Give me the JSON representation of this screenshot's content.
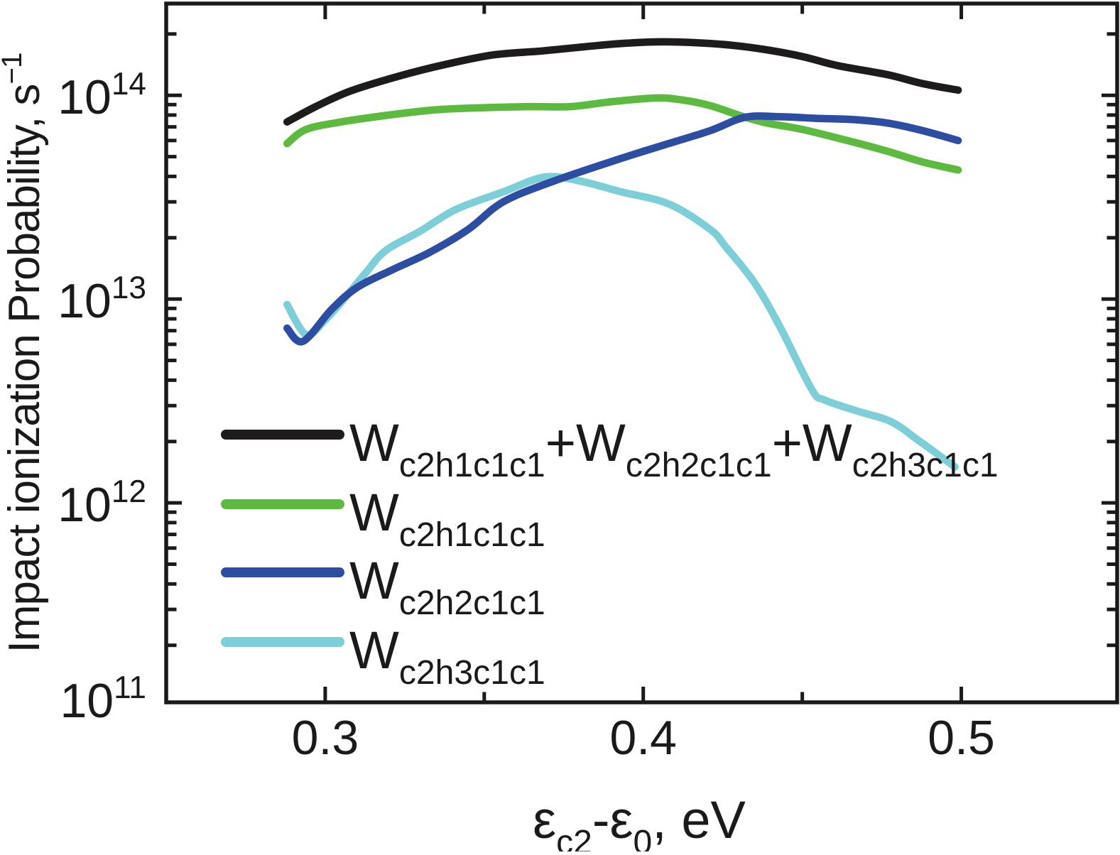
{
  "figure": {
    "background": "#ffffff",
    "kind": "log-scale line plot, publication style"
  },
  "colors": {
    "axis": "#1a1a1a",
    "text": "#1a1a1a",
    "sum": "#1d1b1b",
    "green": "#5cbb3e",
    "blue": "#2d4da2",
    "cyan": "#7ccfd7"
  },
  "axes": {
    "x": {
      "scale": "linear",
      "range": [
        0.25,
        0.549
      ],
      "title_runs": [
        [
          "ε",
          "n"
        ],
        [
          "c2",
          "sub"
        ],
        [
          "-ε",
          "n"
        ],
        [
          "0",
          "sub"
        ],
        [
          ", eV",
          "n"
        ]
      ],
      "major_ticks": [
        {
          "value": 0.3,
          "label": "0.3"
        },
        {
          "value": 0.4,
          "label": "0.4"
        },
        {
          "value": 0.5,
          "label": "0.5"
        }
      ],
      "minor_ticks": [
        0.35,
        0.45
      ]
    },
    "y": {
      "scale": "log",
      "range": [
        105000000000.0,
        282000000000000.0
      ],
      "title_runs": [
        [
          "Impact ionization Probability, s",
          "n"
        ],
        [
          "−1",
          "sup"
        ]
      ],
      "tick_labels": [
        {
          "value": 100000000000.0,
          "base": "10",
          "exp": "11"
        },
        {
          "value": 1000000000000.0,
          "base": "10",
          "exp": "12"
        },
        {
          "value": 10000000000000.0,
          "base": "10",
          "exp": "13"
        },
        {
          "value": 100000000000000.0,
          "base": "10",
          "exp": "14"
        }
      ],
      "major_ticks": [
        1000000000000.0,
        10000000000000.0,
        100000000000000.0
      ],
      "minor_decades": [
        100000000000.0,
        1000000000000.0,
        10000000000000.0,
        100000000000000.0
      ]
    }
  },
  "legend": {
    "position": "inside lower-left",
    "entries": [
      {
        "series_index": 0,
        "color_key": "sum",
        "runs": [
          [
            "W",
            "n"
          ],
          [
            "c2h1c1c1",
            "sub"
          ],
          [
            "+W",
            "n"
          ],
          [
            "c2h2c1c1",
            "sub"
          ],
          [
            "+W",
            "n"
          ],
          [
            "c2h3c1c1",
            "sub"
          ]
        ]
      },
      {
        "series_index": 1,
        "color_key": "green",
        "runs": [
          [
            "W",
            "n"
          ],
          [
            "c2h1c1c1",
            "sub"
          ]
        ]
      },
      {
        "series_index": 2,
        "color_key": "blue",
        "runs": [
          [
            "W",
            "n"
          ],
          [
            "c2h2c1c1",
            "sub"
          ]
        ]
      },
      {
        "series_index": 3,
        "color_key": "cyan",
        "runs": [
          [
            "W",
            "n"
          ],
          [
            "c2h3c1c1",
            "sub"
          ]
        ]
      }
    ]
  },
  "chart_data": {
    "type": "line",
    "title": "",
    "xlabel": "εc2-ε0, eV",
    "ylabel": "Impact ionization Probability, s^-1",
    "xscale": "linear",
    "yscale": "log",
    "xlim": [
      0.25,
      0.55
    ],
    "ylim": [
      105000000000.0,
      285000000000000.0
    ],
    "grid": false,
    "legend_position": "lower left inside",
    "x_unit": "eV",
    "y_unit": "s^-1",
    "series": [
      {
        "name": "Wc2h1c1c1+Wc2h2c1c1+Wc2h3c1c1",
        "color_key": "sum",
        "points": [
          [
            0.288,
            74000000000000.0
          ],
          [
            0.297,
            88000000000000.0
          ],
          [
            0.308,
            105000000000000.0
          ],
          [
            0.323,
            124000000000000.0
          ],
          [
            0.338,
            142000000000000.0
          ],
          [
            0.353,
            158000000000000.0
          ],
          [
            0.368,
            165000000000000.0
          ],
          [
            0.383,
            174000000000000.0
          ],
          [
            0.394,
            180000000000000.0
          ],
          [
            0.406,
            183000000000000.0
          ],
          [
            0.417,
            181000000000000.0
          ],
          [
            0.428,
            176000000000000.0
          ],
          [
            0.439,
            167000000000000.0
          ],
          [
            0.45,
            155000000000000.0
          ],
          [
            0.461,
            140000000000000.0
          ],
          [
            0.477,
            126000000000000.0
          ],
          [
            0.488,
            114000000000000.0
          ],
          [
            0.499,
            106000000000000.0
          ]
        ]
      },
      {
        "name": "Wc2h1c1c1",
        "color_key": "green",
        "points": [
          [
            0.288,
            58000000000000.0
          ],
          [
            0.294,
            68000000000000.0
          ],
          [
            0.305,
            74000000000000.0
          ],
          [
            0.32,
            80000000000000.0
          ],
          [
            0.335,
            85000000000000.0
          ],
          [
            0.35,
            87000000000000.0
          ],
          [
            0.365,
            88000000000000.0
          ],
          [
            0.377,
            88000000000000.0
          ],
          [
            0.39,
            93000000000000.0
          ],
          [
            0.404,
            97000000000000.0
          ],
          [
            0.412,
            95000000000000.0
          ],
          [
            0.421,
            89000000000000.0
          ],
          [
            0.431,
            79000000000000.0
          ],
          [
            0.439,
            73000000000000.0
          ],
          [
            0.45,
            68000000000000.0
          ],
          [
            0.466,
            59000000000000.0
          ],
          [
            0.477,
            53000000000000.0
          ],
          [
            0.488,
            47000000000000.0
          ],
          [
            0.499,
            43000000000000.0
          ]
        ]
      },
      {
        "name": "Wc2h2c1c1",
        "color_key": "blue",
        "points": [
          [
            0.288,
            7200000000000.0
          ],
          [
            0.293,
            6200000000000.0
          ],
          [
            0.302,
            8900000000000.0
          ],
          [
            0.31,
            11400000000000.0
          ],
          [
            0.321,
            13900000000000.0
          ],
          [
            0.333,
            17000000000000.0
          ],
          [
            0.345,
            22000000000000.0
          ],
          [
            0.356,
            30000000000000.0
          ],
          [
            0.372,
            38000000000000.0
          ],
          [
            0.393,
            49000000000000.0
          ],
          [
            0.408,
            58000000000000.0
          ],
          [
            0.421,
            67000000000000.0
          ],
          [
            0.432,
            78000000000000.0
          ],
          [
            0.443,
            78500000000000.0
          ],
          [
            0.455,
            77000000000000.0
          ],
          [
            0.466,
            76000000000000.0
          ],
          [
            0.477,
            73000000000000.0
          ],
          [
            0.488,
            67000000000000.0
          ],
          [
            0.499,
            60000000000000.0
          ]
        ]
      },
      {
        "name": "Wc2h3c1c1",
        "color_key": "cyan",
        "points": [
          [
            0.288,
            9400000000000.0
          ],
          [
            0.294,
            6700000000000.0
          ],
          [
            0.3,
            7900000000000.0
          ],
          [
            0.307,
            10500000000000.0
          ],
          [
            0.313,
            13600000000000.0
          ],
          [
            0.319,
            17300000000000.0
          ],
          [
            0.33,
            21600000000000.0
          ],
          [
            0.341,
            27500000000000.0
          ],
          [
            0.356,
            33600000000000.0
          ],
          [
            0.369,
            39700000000000.0
          ],
          [
            0.38,
            38000000000000.0
          ],
          [
            0.393,
            33600000000000.0
          ],
          [
            0.408,
            29300000000000.0
          ],
          [
            0.421,
            22000000000000.0
          ],
          [
            0.426,
            18000000000000.0
          ],
          [
            0.435,
            12000000000000.0
          ],
          [
            0.443,
            7300000000000.0
          ],
          [
            0.453,
            3600000000000.0
          ],
          [
            0.457,
            3200000000000.0
          ],
          [
            0.468,
            2800000000000.0
          ],
          [
            0.478,
            2500000000000.0
          ],
          [
            0.487,
            2000000000000.0
          ],
          [
            0.498,
            1500000000000.0
          ]
        ]
      }
    ]
  }
}
